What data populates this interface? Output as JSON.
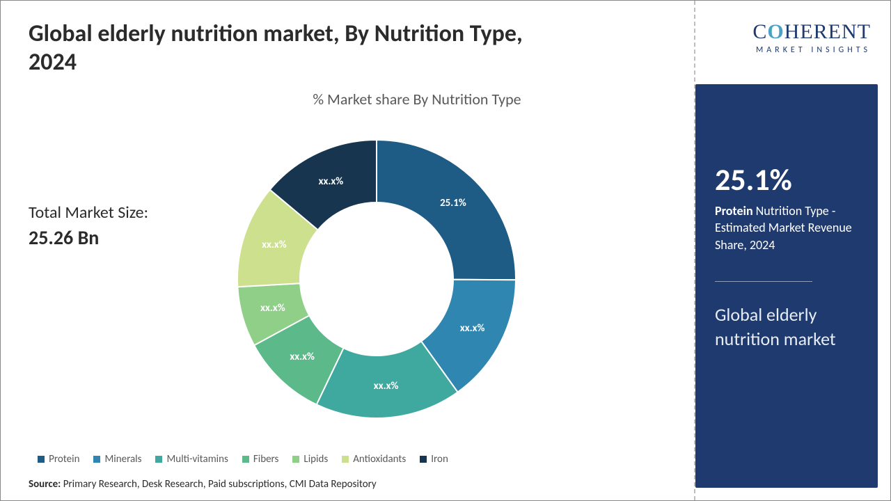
{
  "title": "Global elderly nutrition market, By Nutrition Type, 2024",
  "subtitle": "% Market share By Nutrition Type",
  "total_market": {
    "label": "Total Market Size:",
    "value": "25.26 Bn"
  },
  "source": {
    "prefix": "Source:",
    "text": " Primary Research, Desk Research, Paid subscriptions, CMI Data Repository"
  },
  "logo": {
    "text_pre": "C",
    "text_oh": "O",
    "text_post": "HERENT",
    "sub": "MARKET INSIGHTS"
  },
  "side": {
    "big_pct": "25.1%",
    "desc_bold": "Protein",
    "desc_rest": " Nutrition Type - Estimated Market Revenue Share, 2024",
    "name": "Global elderly nutrition market"
  },
  "chart": {
    "type": "donut",
    "inner_radius_ratio": 0.55,
    "background_color": "#ffffff",
    "start_angle_deg": -90,
    "label_fontsize": 15,
    "label_color": "#ffffff",
    "slices": [
      {
        "name": "Protein",
        "value": 25.1,
        "label": "25.1%",
        "color": "#1e5b85"
      },
      {
        "name": "Minerals",
        "value": 15.0,
        "label": "xx.x%",
        "color": "#2f86b0"
      },
      {
        "name": "Multi-vitamins",
        "value": 17.0,
        "label": "xx.x%",
        "color": "#3fa9a0"
      },
      {
        "name": "Fibers",
        "value": 10.0,
        "label": "xx.x%",
        "color": "#5cb989"
      },
      {
        "name": "Lipids",
        "value": 7.0,
        "label": "xx.x%",
        "color": "#8fcf88"
      },
      {
        "name": "Antioxidants",
        "value": 12.0,
        "label": "xx.x%",
        "color": "#cde08e"
      },
      {
        "name": "Iron",
        "value": 13.9,
        "label": "xx.x%",
        "color": "#17354f"
      }
    ]
  }
}
